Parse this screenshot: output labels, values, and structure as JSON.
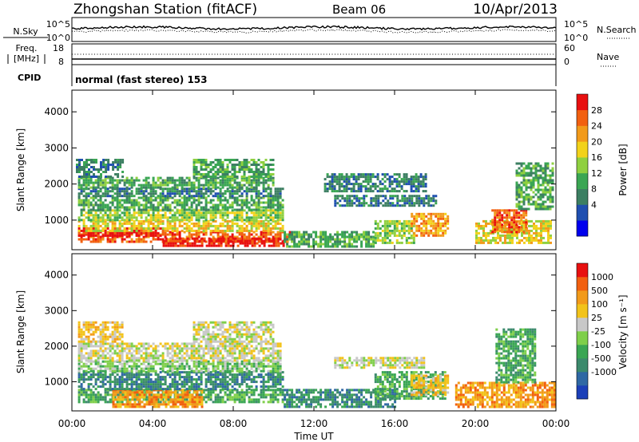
{
  "header": {
    "station": "Zhongshan Station (fitACF)",
    "beam": "Beam 06",
    "date": "10/Apr/2013"
  },
  "status_panels": {
    "nsky_label": "N.Sky",
    "nsearch_label": "N.Search",
    "freq_label_1": "Freq.",
    "freq_label_2": "[MHz]",
    "nave_label": "Nave",
    "cpid_label": "CPID",
    "cpid_text": "normal (fast stereo) 153",
    "noise_ticks": [
      "10^5",
      "10^0"
    ],
    "freq_ticks": [
      "18",
      "8"
    ],
    "nave_ticks": [
      "60",
      "0"
    ]
  },
  "chart_data": [
    {
      "type": "heatmap",
      "panel": "power",
      "ylabel": "Slant Range [km]",
      "ylim": [
        180,
        4600
      ],
      "yticks": [
        "1000",
        "2000",
        "3000",
        "4000"
      ],
      "xlim_hours": [
        0,
        24
      ],
      "colorbar": {
        "label": "Power [dB]",
        "ticks": [
          "28",
          "24",
          "20",
          "16",
          "12",
          "8",
          "4"
        ],
        "colors": [
          "#0000ee",
          "#1f4fb0",
          "#3c7f62",
          "#3aa653",
          "#8fd040",
          "#f2d21a",
          "#f29a1a",
          "#f26010",
          "#e81010"
        ]
      },
      "regions": [
        {
          "t0": 0.3,
          "t1": 10.8,
          "r0": 400,
          "r1": 700,
          "c": 7
        },
        {
          "t0": 4.5,
          "t1": 10.5,
          "r0": 300,
          "r1": 520,
          "c": 8
        },
        {
          "t0": 0.3,
          "t1": 4.5,
          "r0": 560,
          "r1": 800,
          "c": 8
        },
        {
          "t0": 0.3,
          "t1": 10.5,
          "r0": 700,
          "r1": 1000,
          "c": 5
        },
        {
          "t0": 0.3,
          "t1": 10.5,
          "r0": 1000,
          "r1": 1300,
          "c": 4
        },
        {
          "t0": 0.3,
          "t1": 10.5,
          "r0": 1300,
          "r1": 1650,
          "c": 3
        },
        {
          "t0": 0.3,
          "t1": 10.5,
          "r0": 1650,
          "r1": 1900,
          "c": 2
        },
        {
          "t0": 0.3,
          "t1": 10.0,
          "r0": 1900,
          "r1": 2200,
          "c": 3
        },
        {
          "t0": 0.2,
          "t1": 2.5,
          "r0": 2200,
          "r1": 2700,
          "c": 2
        },
        {
          "t0": 6.0,
          "t1": 10.0,
          "r0": 2200,
          "r1": 2700,
          "c": 3
        },
        {
          "t0": 10.5,
          "t1": 15.0,
          "r0": 300,
          "r1": 700,
          "c": 3
        },
        {
          "t0": 15.0,
          "t1": 17.0,
          "r0": 400,
          "r1": 1000,
          "c": 4
        },
        {
          "t0": 16.8,
          "t1": 18.6,
          "r0": 600,
          "r1": 1200,
          "c": 6
        },
        {
          "t0": 13.0,
          "t1": 18.0,
          "r0": 1400,
          "r1": 1700,
          "c": 2
        },
        {
          "t0": 12.5,
          "t1": 17.5,
          "r0": 1800,
          "r1": 2300,
          "c": 2
        },
        {
          "t0": 20.0,
          "t1": 23.8,
          "r0": 400,
          "r1": 1000,
          "c": 5
        },
        {
          "t0": 20.8,
          "t1": 22.5,
          "r0": 700,
          "r1": 1300,
          "c": 7
        },
        {
          "t0": 22.0,
          "t1": 23.9,
          "r0": 1300,
          "r1": 2600,
          "c": 3
        }
      ]
    },
    {
      "type": "heatmap",
      "panel": "velocity",
      "ylabel": "Slant Range [km]",
      "ylim": [
        180,
        4600
      ],
      "yticks": [
        "1000",
        "2000",
        "3000",
        "4000"
      ],
      "xlim_hours": [
        0,
        24
      ],
      "xticks": [
        "00:00",
        "04:00",
        "08:00",
        "12:00",
        "16:00",
        "20:00",
        "00:00"
      ],
      "xlabel": "Time UT",
      "colorbar": {
        "label": "Velocity [m s⁻¹]",
        "ticks": [
          "1000",
          "500",
          "100",
          "25",
          "-25",
          "-100",
          "-500",
          "-1000"
        ],
        "colors": [
          "#1b3fb8",
          "#2f68a4",
          "#3c8a6c",
          "#3aa653",
          "#7fcf4a",
          "#c8c8c8",
          "#f2c31a",
          "#f29a1a",
          "#f26010",
          "#e81010"
        ]
      },
      "regions": [
        {
          "t0": 0.3,
          "t1": 10.5,
          "r0": 400,
          "r1": 800,
          "c": 3
        },
        {
          "t0": 2.0,
          "t1": 6.5,
          "r0": 300,
          "r1": 800,
          "c": 7
        },
        {
          "t0": 0.3,
          "t1": 10.5,
          "r0": 800,
          "r1": 1300,
          "c": 2
        },
        {
          "t0": 0.3,
          "t1": 10.3,
          "r0": 1300,
          "r1": 1600,
          "c": 4
        },
        {
          "t0": 0.3,
          "t1": 10.3,
          "r0": 1600,
          "r1": 2100,
          "c": 5
        },
        {
          "t0": 6.0,
          "t1": 10.0,
          "r0": 2100,
          "r1": 2700,
          "c": 5
        },
        {
          "t0": 0.3,
          "t1": 2.5,
          "r0": 2100,
          "r1": 2700,
          "c": 6
        },
        {
          "t0": 10.5,
          "t1": 16.0,
          "r0": 300,
          "r1": 800,
          "c": 2
        },
        {
          "t0": 15.0,
          "t1": 18.5,
          "r0": 500,
          "r1": 1300,
          "c": 3
        },
        {
          "t0": 16.8,
          "t1": 18.6,
          "r0": 600,
          "r1": 1200,
          "c": 6
        },
        {
          "t0": 13.0,
          "t1": 17.5,
          "r0": 1400,
          "r1": 1700,
          "c": 5
        },
        {
          "t0": 19.0,
          "t1": 23.9,
          "r0": 300,
          "r1": 1000,
          "c": 7
        },
        {
          "t0": 21.0,
          "t1": 23.0,
          "r0": 1000,
          "r1": 2500,
          "c": 3
        }
      ]
    }
  ]
}
